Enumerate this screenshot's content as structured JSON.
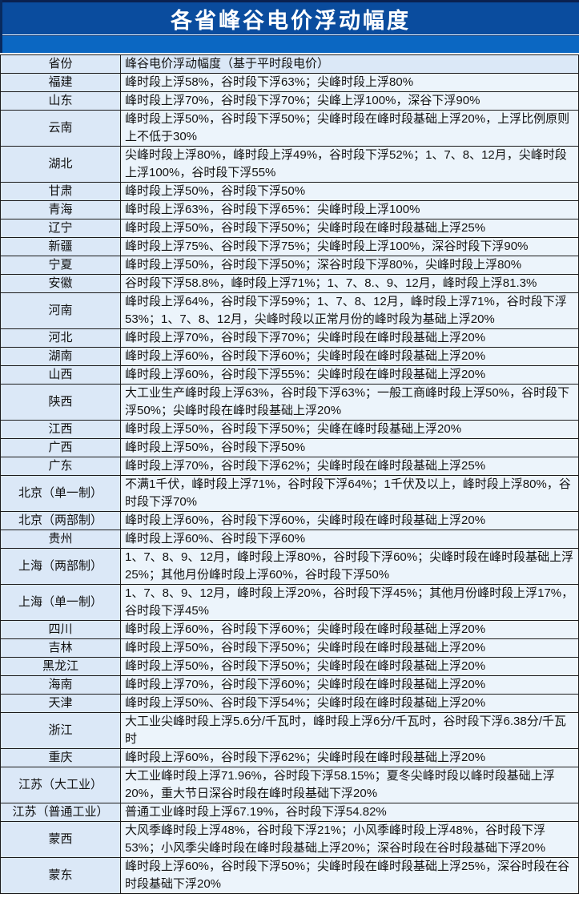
{
  "page_title": "各省峰谷电价浮动幅度",
  "colors": {
    "title_bar_bg": "#0a4c9e",
    "title_bar_top_border": "#0a2150",
    "band_bg": "#0b67c2",
    "province_cell_bg": "#dbe8f7",
    "desc_cell_bg": "#ecf4fb",
    "grid_border": "#1b1b1b",
    "title_text": "#ffffff",
    "body_text": "#111111"
  },
  "chart_data": {
    "type": "table",
    "title": "各省峰谷电价浮动幅度",
    "columns": [
      "省份",
      "峰谷电价浮动幅度（基于平时段电价）"
    ],
    "rows": [
      [
        "福建",
        "峰时段上浮58%，谷时段下浮63%；尖峰时段上浮80%"
      ],
      [
        "山东",
        "峰时段上浮70%，谷时段下浮70%；尖峰上浮100%，深谷下浮90%"
      ],
      [
        "云南",
        "峰时段上浮50%，谷时段下浮50%；尖峰时段在峰时段基础上浮20%，上浮比例原则上不低于30%"
      ],
      [
        "湖北",
        "尖峰时段上浮80%，峰时段上浮49%，谷时段下浮52%；1、7、8、12月，尖峰时段上浮100%，谷时段下浮55%"
      ],
      [
        "甘肃",
        "峰时段上浮50%，谷时段下浮50%"
      ],
      [
        "青海",
        "峰时段上浮63%，谷时段下浮65%：尖峰时段上浮100%"
      ],
      [
        "辽宁",
        "峰时段上浮50%，谷时段下浮50%；尖峰时段在峰时段基础上浮25%"
      ],
      [
        "新疆",
        "峰时段上浮75%、谷时段下浮75%；尖峰时段上浮100%，深谷时段下浮90%"
      ],
      [
        "宁夏",
        "峰时段上浮50%，谷时段下浮50%；深谷时段下浮80%，尖峰时段上浮80%"
      ],
      [
        "安徽",
        "谷时段下浮58.8%，峰时段上浮71%；1、7、8.、9、12月，峰时段上浮81.3%"
      ],
      [
        "河南",
        "峰时段上浮64%，谷时段下浮59%；1、7、8、12月，峰时段上浮71%，谷时段下浮53%；1、7、8、12月，尖峰时段以正常月份的峰时段为基础上浮20%"
      ],
      [
        "河北",
        "峰时段上浮70%，谷时段下浮70%；尖峰时段在峰时段基础上浮20%"
      ],
      [
        "湖南",
        "峰时段上浮60%，谷时段下浮60%；尖峰时段在峰时段基础上浮20%"
      ],
      [
        "山西",
        "峰时段上浮60%，谷时段下浮55%：尖峰时段在峰时段基础上浮20%"
      ],
      [
        "陕西",
        "大工业生产峰时段上浮63%，谷时段下浮63%；一般工商峰时段上浮50%，谷时段下浮50%；尖峰时段在峰时段基础上浮20%"
      ],
      [
        "江西",
        "峰时段上浮50%，谷时段下浮50%；尖峰在峰时段基础上浮20%"
      ],
      [
        "广西",
        "峰时段上浮50%，谷时段下浮50%"
      ],
      [
        "广东",
        "峰时段上浮70%，谷时段下浮62%；尖峰时段在峰时段基础上浮25%"
      ],
      [
        "北京（单一制）",
        "不满1千伏，峰时段上浮71%，谷时段下浮64%；1千伏及以上，峰时段上浮80%，谷时段下浮70%"
      ],
      [
        "北京（两部制）",
        "峰时段上浮60%，谷时段下浮60%，尖峰时段在峰时段基础上浮20%"
      ],
      [
        "贵州",
        "峰时段上浮60%、谷时段下浮60%"
      ],
      [
        "上海（两部制）",
        "1、7、8、9、12月，峰时段上浮80%，谷时段下浮60%；尖峰时段在峰时段基础上浮25%；其他月份峰时段上浮60%，谷时段下浮50%"
      ],
      [
        "上海（单一制）",
        "1、7、8、9、12月，峰时段上浮20%，谷时段下浮45%；其他月份峰时段上浮17%，谷时段下浮45%"
      ],
      [
        "四川",
        "峰时段上浮60%，谷时段下浮60%；尖峰时段在峰时段基础上浮20%"
      ],
      [
        "吉林",
        "峰时段上浮50%，谷时段下浮50%；尖峰时段在峰时段基础上浮20%"
      ],
      [
        "黑龙江",
        "峰时段上浮50%，谷时段下浮50%；尖峰时段在峰时段基础上浮20%"
      ],
      [
        "海南",
        "峰时段上浮70%，谷时段下浮60%；尖峰时段在峰时段基础上浮20%"
      ],
      [
        "天津",
        "峰时段上浮50%、谷时段下浮54%；尖峰时段在峰时段基础上浮20%"
      ],
      [
        "浙江",
        "大工业尖峰时段上浮5.6分/千瓦时，峰时段上浮6分/千瓦时，谷时段下浮6.38分/千瓦时"
      ],
      [
        "重庆",
        "峰时段上浮60%，谷时段下浮62%；尖峰时段在峰时段基础上浮20%"
      ],
      [
        "江苏（大工业）",
        "大工业峰时段上浮71.96%，谷时段下浮58.15%；夏冬尖峰时段以峰时段基础上浮20%，重大节日深谷时段在峰时段基础下浮20%"
      ],
      [
        "江苏（普通工业）",
        "普通工业峰时段上浮67.19%，谷时段下浮54.82%"
      ],
      [
        "蒙西",
        "大风季峰时段上浮48%，谷时段下浮21%；小风季峰时段上浮48%，谷时段下浮53%；小风季尖峰时段在峰时段基础上浮20%；深谷时段在谷时段基础下浮20%"
      ],
      [
        "蒙东",
        "峰时段上浮60%，谷时段下浮50%；尖峰时段在峰时段基础上浮25%，深谷时段在谷时段基础下浮20%"
      ]
    ]
  }
}
